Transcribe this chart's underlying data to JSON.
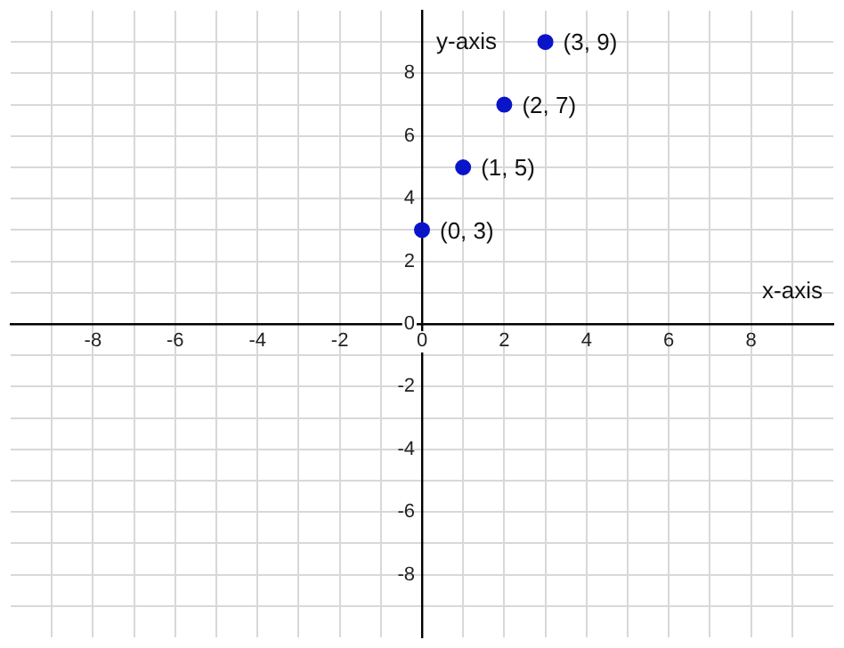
{
  "chart_data": {
    "type": "scatter",
    "xlabel": "x-axis",
    "ylabel": "y-axis",
    "x": [
      0,
      1,
      2,
      3
    ],
    "series": [
      {
        "color": "#0a14c8",
        "values": [
          3,
          5,
          7,
          9
        ],
        "value_labels": [
          "(0, 3)",
          "(1, 5)",
          "(2, 7)",
          "(3, 9)"
        ]
      }
    ],
    "xlim": [
      -10,
      10
    ],
    "ylim": [
      -10,
      10
    ],
    "xticks": [
      {
        "value": -9,
        "label": null
      },
      -8,
      {
        "value": -7,
        "label": null
      },
      -6,
      {
        "value": -5,
        "label": null
      },
      -4,
      {
        "value": -3,
        "label": null
      },
      -2,
      {
        "value": -1,
        "label": null
      },
      0,
      {
        "value": 1,
        "label": null
      },
      2,
      {
        "value": 3,
        "label": null
      },
      4,
      {
        "value": 5,
        "label": null
      },
      6,
      {
        "value": 7,
        "label": null
      },
      8,
      {
        "value": 9,
        "label": null
      }
    ],
    "yticks": [
      {
        "value": -9,
        "label": null
      },
      -8,
      {
        "value": -7,
        "label": null
      },
      -6,
      {
        "value": -5,
        "label": null
      },
      -4,
      {
        "value": -3,
        "label": null
      },
      -2,
      {
        "value": -1,
        "label": null
      },
      0,
      {
        "value": 1,
        "label": null
      },
      2,
      {
        "value": 3,
        "label": null
      },
      4,
      {
        "value": 5,
        "label": null
      },
      6,
      {
        "value": 7,
        "label": null
      },
      8,
      {
        "value": 9,
        "label": null
      }
    ],
    "grid": true,
    "legend": false,
    "marker": "circle"
  }
}
